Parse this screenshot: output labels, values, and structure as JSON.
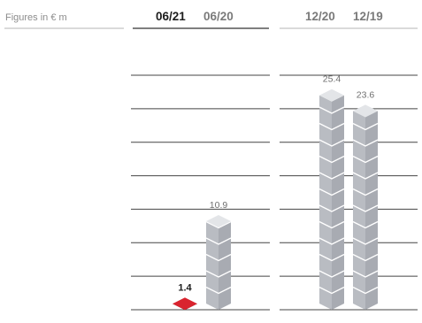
{
  "chart_data": {
    "type": "bar",
    "unit_label": "Figures in € m",
    "groups": [
      {
        "bars": [
          {
            "period": "06/21",
            "value": 1.4,
            "value_label": "1.4",
            "highlight": true
          },
          {
            "period": "06/20",
            "value": 10.9,
            "value_label": "10.9",
            "highlight": false
          }
        ]
      },
      {
        "bars": [
          {
            "period": "12/20",
            "value": 25.4,
            "value_label": "25.4",
            "highlight": false
          },
          {
            "period": "12/19",
            "value": 23.6,
            "value_label": "23.6",
            "highlight": false
          }
        ]
      }
    ],
    "ylim": [
      0,
      27
    ],
    "grid": true,
    "colors": {
      "current_top": "#d9232e",
      "current_side": "#2f3440",
      "prior_top": "#e3e5e8",
      "prior_front": "#b9bcc2",
      "prior_side": "#a8abb2",
      "grid": "#444444",
      "header_rule": "#b5b5b5",
      "header_rule_current": "#333333"
    }
  }
}
